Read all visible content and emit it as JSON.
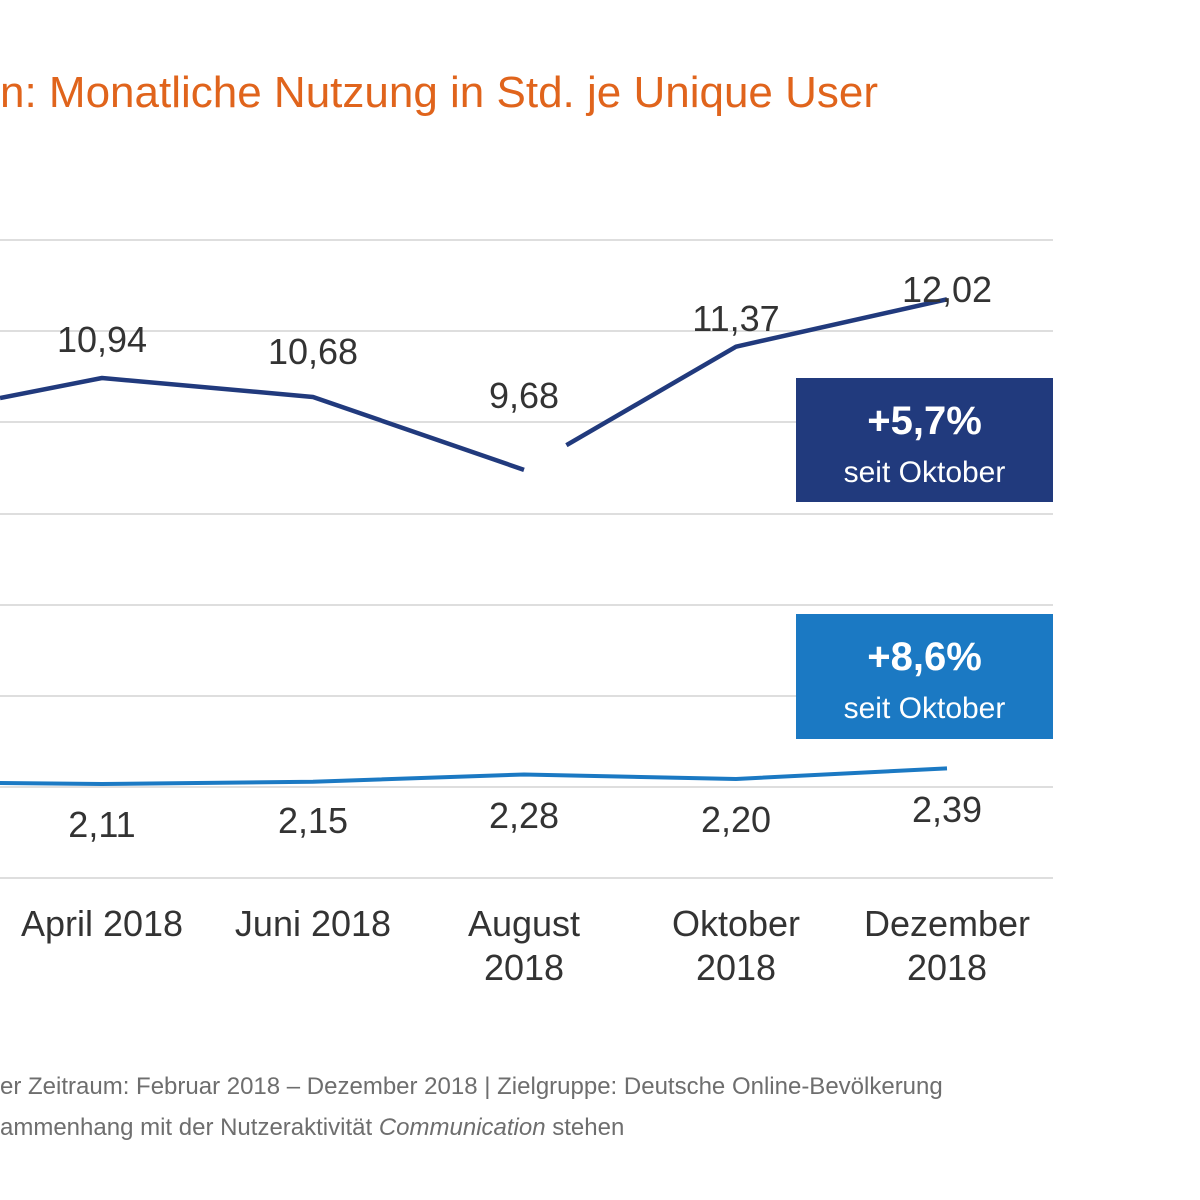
{
  "colors": {
    "title": "#e0641c",
    "series_upper": "#213a7d",
    "series_lower": "#1b79c3",
    "grid": "#dedede",
    "label_text": "#333333",
    "footnote_text": "#6e6e6e",
    "badge_text": "#ffffff"
  },
  "chart_data": {
    "type": "line",
    "title": "n: Monatliche Nutzung in Std. je Unique User",
    "categories": [
      "April 2018",
      "Juni 2018",
      "August 2018",
      "Oktober 2018",
      "Dezember 2018"
    ],
    "series": [
      {
        "values": [
          10.94,
          10.68,
          9.68,
          11.37,
          12.02
        ],
        "labels": [
          "10,94",
          "10,68",
          "9,68",
          "11,37",
          "12,02"
        ]
      },
      {
        "values": [
          2.11,
          2.15,
          2.28,
          2.2,
          2.39
        ],
        "labels": [
          "2,11",
          "2,15",
          "2,28",
          "2,20",
          "2,39"
        ]
      }
    ],
    "grid": true,
    "legend": "none"
  },
  "badges": [
    {
      "value": "+5,7%",
      "caption": "seit Oktober"
    },
    {
      "value": "+8,6%",
      "caption": "seit Oktober"
    }
  ],
  "footnote": {
    "line1": "er Zeitraum: Februar 2018 – Dezember 2018 | Zielgruppe: Deutsche Online-Bevölkerung",
    "line2_prefix": "ammenhang mit der Nutzeraktivität ",
    "line2_italic": "Communication",
    "line2_suffix": " stehen"
  }
}
